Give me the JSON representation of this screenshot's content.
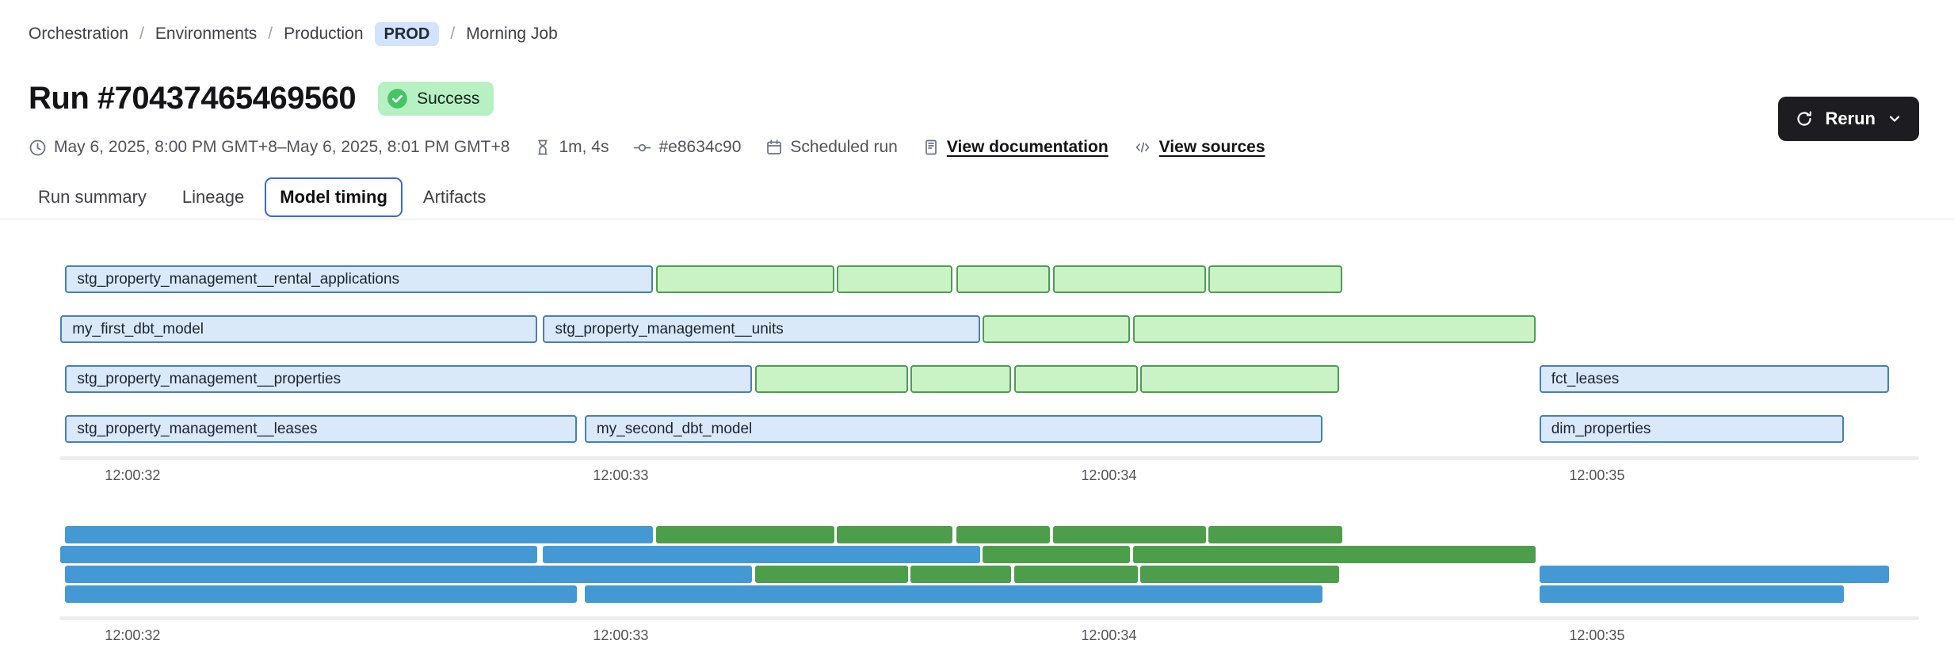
{
  "breadcrumb": {
    "separator": "/",
    "items": [
      "Orchestration",
      "Environments",
      "Production"
    ],
    "env_badge": "PROD",
    "current": "Morning Job"
  },
  "header": {
    "title": "Run #70437465469560",
    "status_badge": "Success",
    "rerun_label": "Rerun"
  },
  "meta": {
    "time_range": "May 6, 2025, 8:00 PM GMT+8–May 6, 2025, 8:01 PM GMT+8",
    "duration": "1m, 4s",
    "commit": "#e8634c90",
    "trigger": "Scheduled run",
    "documentation_link": "View documentation",
    "sources_link": "View sources"
  },
  "icons": {
    "status": "check-circle-icon",
    "time_range": "clock-icon",
    "duration": "hourglass-icon",
    "commit": "git-commit-icon",
    "trigger": "calendar-icon",
    "documentation": "document-icon",
    "sources": "code-icon",
    "rerun": "refresh-icon",
    "rerun_menu": "chevron-down-icon"
  },
  "tabs": [
    {
      "label": "Run summary",
      "active": false
    },
    {
      "label": "Lineage",
      "active": false
    },
    {
      "label": "Model timing",
      "active": true
    },
    {
      "label": "Artifacts",
      "active": false
    }
  ],
  "chart_data": {
    "type": "gantt",
    "title": "Model timing",
    "description": "Run model timing Gantt; blue bars are models (labeled), green bars are tests (unlabeled). Rendered twice: detailed chart and solid-color minimap. Times are seconds within 12:00 (chart clock).",
    "x_domain_seconds": [
      31.85,
      35.66
    ],
    "x_ticks": [
      {
        "t": 32,
        "label": "12:00:32"
      },
      {
        "t": 33,
        "label": "12:00:33"
      },
      {
        "t": 34,
        "label": "12:00:34"
      },
      {
        "t": 35,
        "label": "12:00:35"
      }
    ],
    "colors": {
      "model_fill": "#d9e9f9",
      "model_border": "#4a7fb2",
      "test_fill": "#c9f3c5",
      "test_border": "#4f9b54",
      "minimap_model": "#4499d4",
      "minimap_test": "#4d9e4b",
      "track": "#ededed"
    },
    "rows": [
      {
        "bars": [
          {
            "name": "stg_property_management__rental_applications",
            "kind": "model",
            "start": 31.862,
            "end": 33.066
          },
          {
            "name": "",
            "kind": "test",
            "start": 33.072,
            "end": 33.437
          },
          {
            "name": "",
            "kind": "test",
            "start": 33.442,
            "end": 33.68
          },
          {
            "name": "",
            "kind": "test",
            "start": 33.688,
            "end": 33.88
          },
          {
            "name": "",
            "kind": "test",
            "start": 33.885,
            "end": 34.199
          },
          {
            "name": "",
            "kind": "test",
            "start": 34.204,
            "end": 34.478
          }
        ]
      },
      {
        "bars": [
          {
            "name": "my_first_dbt_model",
            "kind": "model",
            "start": 31.852,
            "end": 32.829
          },
          {
            "name": "stg_property_management__units",
            "kind": "model",
            "start": 32.841,
            "end": 33.737
          },
          {
            "name": "",
            "kind": "test",
            "start": 33.742,
            "end": 34.043
          },
          {
            "name": "",
            "kind": "test",
            "start": 34.049,
            "end": 34.875
          }
        ]
      },
      {
        "bars": [
          {
            "name": "stg_property_management__properties",
            "kind": "model",
            "start": 31.862,
            "end": 33.268
          },
          {
            "name": "",
            "kind": "test",
            "start": 33.276,
            "end": 33.588
          },
          {
            "name": "",
            "kind": "test",
            "start": 33.593,
            "end": 33.8
          },
          {
            "name": "",
            "kind": "test",
            "start": 33.806,
            "end": 34.059
          },
          {
            "name": "",
            "kind": "test",
            "start": 34.064,
            "end": 34.471
          },
          {
            "name": "fct_leases",
            "kind": "model",
            "start": 34.882,
            "end": 35.598
          }
        ]
      },
      {
        "bars": [
          {
            "name": "stg_property_management__leases",
            "kind": "model",
            "start": 31.862,
            "end": 32.91
          },
          {
            "name": "my_second_dbt_model",
            "kind": "model",
            "start": 32.926,
            "end": 34.437
          },
          {
            "name": "dim_properties",
            "kind": "model",
            "start": 34.882,
            "end": 35.506
          }
        ]
      }
    ]
  }
}
